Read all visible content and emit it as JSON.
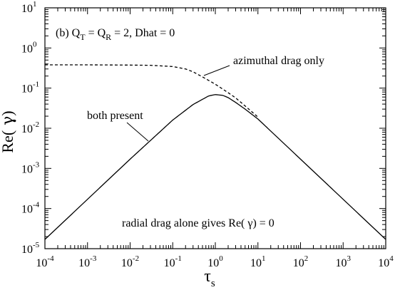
{
  "chart_data": {
    "type": "line",
    "panel_label": "(b)",
    "params_text": {
      "q_symbol": "Q",
      "qt_sub": "T",
      "mid": "= Q",
      "qr_sub": "R",
      "rest": "= 2, Dhat = 0"
    },
    "xlabel": {
      "symbol": "τ",
      "sub": "s"
    },
    "ylabel": {
      "pre": "Re(",
      "sym": " γ",
      "post": ")"
    },
    "xscale": "log",
    "yscale": "log",
    "xlim": [
      0.0001,
      10000
    ],
    "ylim": [
      1e-05,
      10
    ],
    "x_ticks": [
      {
        "base": "10",
        "exp": "-4",
        "value": 0.0001
      },
      {
        "base": "10",
        "exp": "-3",
        "value": 0.001
      },
      {
        "base": "10",
        "exp": "-2",
        "value": 0.01
      },
      {
        "base": "10",
        "exp": "-1",
        "value": 0.1
      },
      {
        "base": "10",
        "exp": "0",
        "value": 1
      },
      {
        "base": "10",
        "exp": "1",
        "value": 10
      },
      {
        "base": "10",
        "exp": "2",
        "value": 100
      },
      {
        "base": "10",
        "exp": "3",
        "value": 1000
      },
      {
        "base": "10",
        "exp": "4",
        "value": 10000
      }
    ],
    "y_ticks": [
      {
        "base": "10",
        "exp": "-5",
        "value": 1e-05
      },
      {
        "base": "10",
        "exp": "-4",
        "value": 0.0001
      },
      {
        "base": "10",
        "exp": "-3",
        "value": 0.001
      },
      {
        "base": "10",
        "exp": "-2",
        "value": 0.01
      },
      {
        "base": "10",
        "exp": "-1",
        "value": 0.1
      },
      {
        "base": "10",
        "exp": "0",
        "value": 1
      },
      {
        "base": "10",
        "exp": "1",
        "value": 10
      }
    ],
    "series": [
      {
        "name": "azimuthal drag only",
        "style": "dashed",
        "x": [
          0.0001,
          0.001,
          0.01,
          0.03,
          0.1,
          0.2,
          0.3,
          0.5,
          1,
          2,
          3,
          5,
          10
        ],
        "y": [
          0.38,
          0.38,
          0.375,
          0.37,
          0.345,
          0.3,
          0.255,
          0.19,
          0.125,
          0.077,
          0.057,
          0.036,
          0.019
        ]
      },
      {
        "name": "both present",
        "style": "solid",
        "x": [
          0.0001,
          0.001,
          0.01,
          0.1,
          0.3,
          0.7,
          1,
          1.5,
          2,
          3,
          5,
          10,
          100,
          1000,
          10000
        ],
        "y": [
          1.7e-05,
          0.00017,
          0.0017,
          0.016,
          0.039,
          0.064,
          0.069,
          0.066,
          0.058,
          0.044,
          0.03,
          0.017,
          0.0017,
          0.00017,
          1.7e-05
        ]
      }
    ],
    "annotations": [
      {
        "text": "azimuthal drag only",
        "x": 20,
        "y": 0.4
      },
      {
        "text": "both present",
        "x": 0.00055,
        "y": 0.013
      },
      {
        "text": "radial drag alone gives Re( γ) = 0",
        "x": 0.003,
        "y": 3.5e-05
      }
    ]
  }
}
